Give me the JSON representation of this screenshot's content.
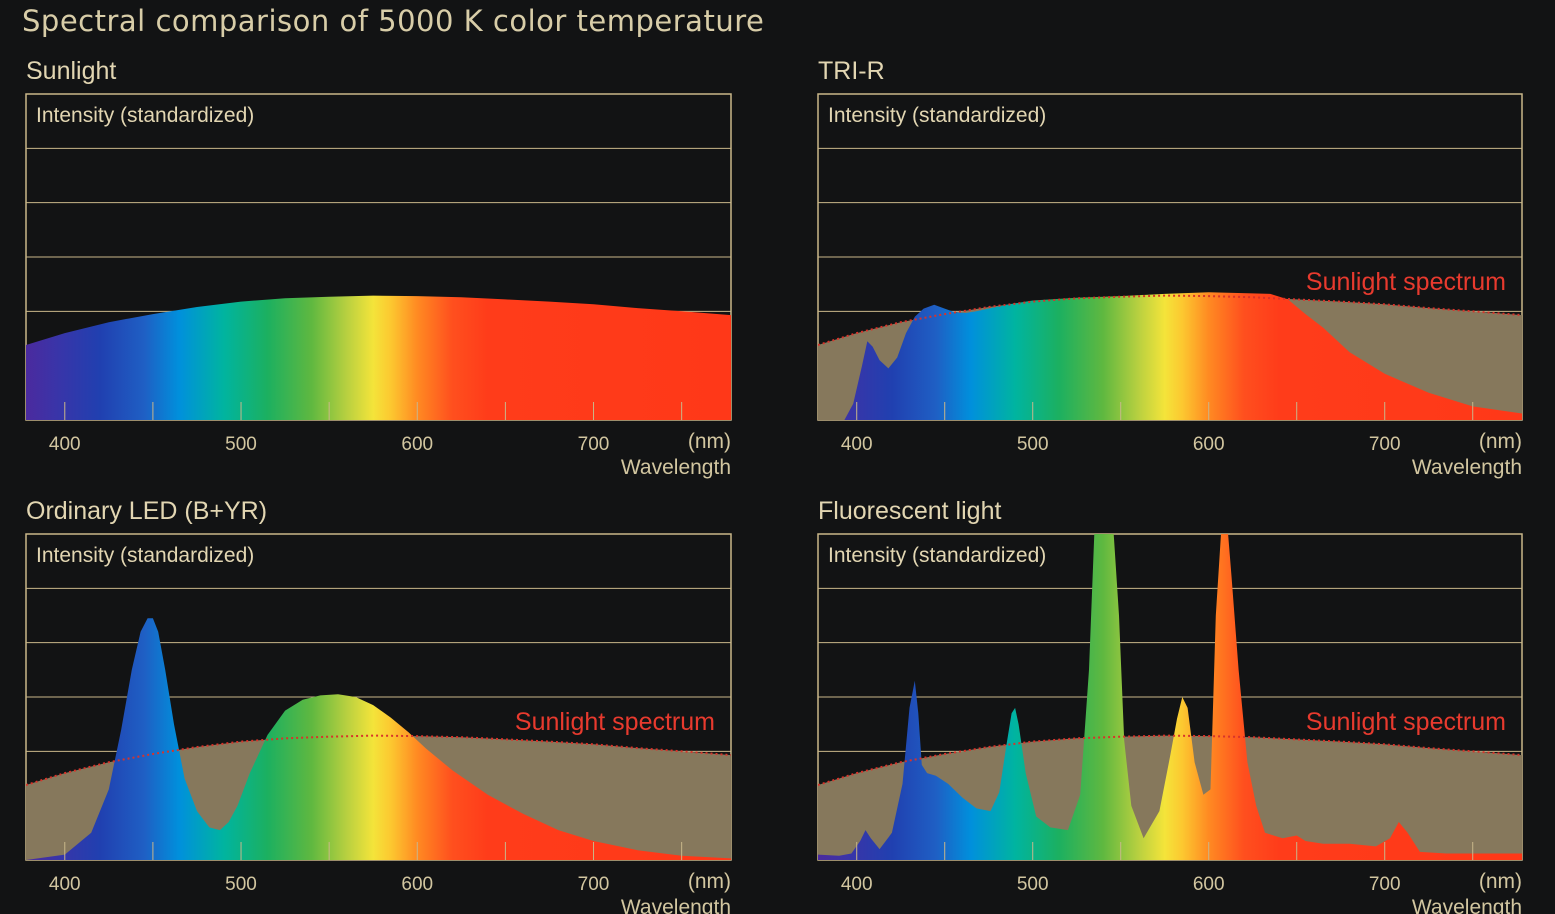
{
  "title": "Spectral comparison of 5000 K color temperature",
  "colors": {
    "background": "#121314",
    "frame": "#c9b78a",
    "sunlight_fill": "#86785c",
    "sunlight_line": "#d8332a",
    "text": "#d8cda8",
    "sunlight_label": "#e83a2e"
  },
  "chart_data": [
    {
      "type": "area",
      "title": "Sunlight",
      "ylabel": "Intensity (standardized)",
      "xlabel": "Wavelength",
      "xunit": "(nm)",
      "xlim": [
        378,
        778
      ],
      "ylim": [
        0,
        6
      ],
      "xticks": [
        400,
        500,
        600,
        700
      ],
      "minor_ticks": [
        450,
        550,
        650,
        750
      ],
      "grid": true,
      "reference_label": "",
      "series": [
        {
          "x": [
            378,
            400,
            425,
            450,
            475,
            500,
            525,
            550,
            575,
            600,
            625,
            650,
            675,
            700,
            725,
            750,
            778
          ],
          "values": [
            1.38,
            1.6,
            1.8,
            1.95,
            2.08,
            2.18,
            2.24,
            2.27,
            2.29,
            2.28,
            2.26,
            2.22,
            2.18,
            2.13,
            2.06,
            2.0,
            1.93
          ]
        }
      ]
    },
    {
      "type": "area",
      "title": "TRI-R",
      "ylabel": "Intensity (standardized)",
      "xlabel": "Wavelength",
      "xunit": "(nm)",
      "xlim": [
        378,
        778
      ],
      "ylim": [
        0,
        6
      ],
      "xticks": [
        400,
        500,
        600,
        700
      ],
      "minor_ticks": [
        450,
        550,
        650,
        750
      ],
      "grid": true,
      "reference_label": "Sunlight spectrum",
      "series": [
        {
          "name": "TRI-R",
          "x": [
            393,
            398,
            403,
            406,
            409,
            413,
            418,
            423,
            428,
            433,
            438,
            444,
            450,
            456,
            462,
            468,
            475,
            485,
            500,
            525,
            550,
            575,
            600,
            625,
            635,
            645,
            655,
            665,
            680,
            700,
            725,
            750,
            778
          ],
          "values": [
            0,
            0.3,
            1.0,
            1.45,
            1.35,
            1.1,
            0.95,
            1.15,
            1.6,
            1.9,
            2.05,
            2.12,
            2.05,
            1.98,
            1.97,
            2.0,
            2.05,
            2.12,
            2.2,
            2.25,
            2.28,
            2.32,
            2.35,
            2.33,
            2.32,
            2.22,
            1.95,
            1.7,
            1.25,
            0.85,
            0.5,
            0.25,
            0.12
          ]
        }
      ]
    },
    {
      "type": "area",
      "title": "Ordinary LED (B+YR)",
      "ylabel": "Intensity (standardized)",
      "xlabel": "Wavelength",
      "xunit": "(nm)",
      "xlim": [
        378,
        778
      ],
      "ylim": [
        0,
        6
      ],
      "xticks": [
        400,
        500,
        600,
        700
      ],
      "minor_ticks": [
        450,
        550,
        650,
        750
      ],
      "grid": true,
      "reference_label": "Sunlight spectrum",
      "series": [
        {
          "name": "Ordinary LED (B+YR)",
          "x": [
            378,
            400,
            415,
            425,
            432,
            438,
            443,
            447,
            450,
            453,
            457,
            462,
            468,
            475,
            482,
            488,
            493,
            498,
            505,
            515,
            525,
            535,
            545,
            555,
            565,
            575,
            585,
            595,
            605,
            620,
            640,
            660,
            680,
            700,
            725,
            750,
            778
          ],
          "values": [
            0,
            0.1,
            0.5,
            1.3,
            2.4,
            3.5,
            4.2,
            4.45,
            4.45,
            4.2,
            3.5,
            2.5,
            1.5,
            0.9,
            0.6,
            0.55,
            0.7,
            1.0,
            1.6,
            2.3,
            2.75,
            2.95,
            3.03,
            3.05,
            3.0,
            2.85,
            2.62,
            2.35,
            2.05,
            1.65,
            1.2,
            0.85,
            0.55,
            0.35,
            0.18,
            0.08,
            0.03
          ]
        }
      ]
    },
    {
      "type": "area",
      "title": "Fluorescent light",
      "ylabel": "Intensity (standardized)",
      "xlabel": "Wavelength",
      "xunit": "(nm)",
      "xlim": [
        378,
        778
      ],
      "ylim": [
        0,
        6
      ],
      "xticks": [
        400,
        500,
        600,
        700
      ],
      "minor_ticks": [
        450,
        550,
        650,
        750
      ],
      "grid": true,
      "reference_label": "Sunlight spectrum",
      "series": [
        {
          "name": "Fluorescent light",
          "x": [
            378,
            390,
            397,
            402,
            405,
            408,
            413,
            420,
            426,
            430,
            433,
            435,
            437,
            440,
            445,
            452,
            460,
            468,
            476,
            481,
            485,
            488,
            490,
            492,
            496,
            502,
            510,
            520,
            527,
            532,
            535,
            538,
            542,
            546,
            549,
            552,
            556,
            563,
            572,
            578,
            582,
            585,
            588,
            592,
            597,
            601,
            604,
            607,
            609,
            611,
            613,
            617,
            622,
            627,
            632,
            642,
            650,
            655,
            665,
            680,
            695,
            703,
            708,
            713,
            720,
            735,
            760,
            778
          ],
          "values": [
            0.1,
            0.08,
            0.12,
            0.35,
            0.55,
            0.4,
            0.2,
            0.5,
            1.4,
            2.8,
            3.3,
            2.7,
            1.75,
            1.6,
            1.55,
            1.4,
            1.15,
            0.95,
            0.9,
            1.25,
            2.1,
            2.7,
            2.8,
            2.5,
            1.6,
            0.8,
            0.6,
            0.55,
            1.2,
            3.5,
            6.0,
            6.0,
            6.0,
            6.0,
            4.5,
            2.2,
            1.0,
            0.4,
            0.9,
            1.9,
            2.6,
            3.0,
            2.8,
            1.8,
            1.2,
            1.3,
            4.5,
            6.0,
            6.0,
            6.0,
            5.2,
            3.5,
            1.8,
            1.0,
            0.5,
            0.4,
            0.45,
            0.35,
            0.3,
            0.3,
            0.25,
            0.4,
            0.7,
            0.5,
            0.15,
            0.12,
            0.12,
            0.12
          ]
        }
      ]
    }
  ],
  "sunlight_reference": {
    "x": [
      378,
      400,
      425,
      450,
      475,
      500,
      525,
      550,
      575,
      600,
      625,
      650,
      675,
      700,
      725,
      750,
      778
    ],
    "values": [
      1.38,
      1.6,
      1.8,
      1.95,
      2.08,
      2.18,
      2.24,
      2.27,
      2.29,
      2.28,
      2.26,
      2.22,
      2.18,
      2.13,
      2.06,
      2.0,
      1.93
    ]
  },
  "spectrum_colors": {
    "x": [
      378,
      395,
      420,
      445,
      465,
      490,
      515,
      540,
      560,
      575,
      585,
      600,
      620,
      640,
      780
    ],
    "colors": [
      "#4b2a9e",
      "#3a34a8",
      "#2040b0",
      "#1f5fc4",
      "#0090dc",
      "#00b4a0",
      "#1cb060",
      "#5fb840",
      "#b8d040",
      "#f4e43a",
      "#fcc830",
      "#ff8a22",
      "#ff4f1e",
      "#ff3c1a",
      "#ff3818"
    ]
  }
}
